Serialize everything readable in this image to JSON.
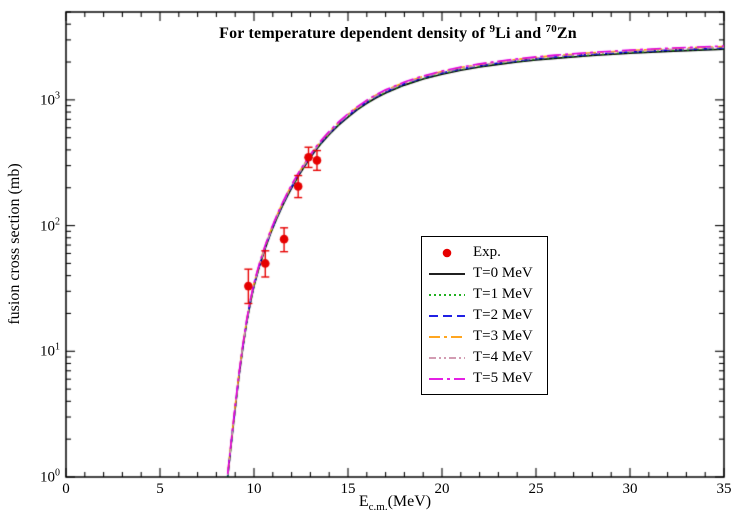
{
  "chart_data": {
    "type": "line",
    "title": "For temperature dependent density of 9Li and 70Zn",
    "title_parts": {
      "prefix": "For temperature dependent density of ",
      "iso1_mass": "9",
      "iso1_symbol": "Li",
      "conjunction": " and ",
      "iso2_mass": "70",
      "iso2_symbol": "Zn"
    },
    "xlabel": {
      "base": "E",
      "sub": "c.m.",
      "unit": "(MeV)"
    },
    "ylabel": "fusion cross section (mb)",
    "x_axis": {
      "min": 0,
      "max": 35,
      "major_ticks": [
        0,
        5,
        10,
        15,
        20,
        25,
        30,
        35
      ],
      "minor_step": 1
    },
    "y_axis": {
      "scale": "log",
      "min": 1,
      "max": 5000,
      "major_tick_exponents": [
        0,
        1,
        2,
        3
      ]
    },
    "grid": false,
    "legend": {
      "position": "center-right"
    },
    "curve_x": [
      8.6,
      8.8,
      9.0,
      9.2,
      9.4,
      9.6,
      9.8,
      10.0,
      10.3,
      10.6,
      10.9,
      11.2,
      11.5,
      11.8,
      12.1,
      12.4,
      12.7,
      13.0,
      13.3,
      13.6,
      14.0,
      14.5,
      15.0,
      15.5,
      16.0,
      16.5,
      17.0,
      18.0,
      19.0,
      20.0,
      21.0,
      22.0,
      23.0,
      24.0,
      25.0,
      26.0,
      28.0,
      30.0,
      32.0,
      35.0
    ],
    "curve_base_y": [
      1.0,
      1.9,
      3.5,
      6.3,
      10.5,
      16.5,
      24,
      33,
      48,
      66,
      88,
      113,
      142,
      175,
      212,
      253,
      298,
      347,
      400,
      455,
      530,
      630,
      730,
      835,
      940,
      1040,
      1135,
      1310,
      1465,
      1600,
      1720,
      1825,
      1915,
      2000,
      2075,
      2140,
      2255,
      2350,
      2430,
      2530
    ],
    "series": [
      {
        "name": "T=0 MeV",
        "color": "#000000",
        "dash": [],
        "scale": 1.0
      },
      {
        "name": "T=1 MeV",
        "color": "#00a400",
        "dash": [
          2,
          3
        ],
        "scale": 1.012
      },
      {
        "name": "T=2 MeV",
        "color": "#0000e0",
        "dash": [
          9,
          5
        ],
        "scale": 1.024
      },
      {
        "name": "T=3 MeV",
        "color": "#ff9a00",
        "dash": [
          11,
          4,
          3,
          4
        ],
        "scale": 1.05
      },
      {
        "name": "T=4 MeV",
        "color": "#cc8fa8",
        "dash": [
          7,
          3,
          2,
          3,
          2,
          3
        ],
        "scale": 1.036
      },
      {
        "name": "T=5 MeV",
        "color": "#e100e1",
        "dash": [
          14,
          4,
          3,
          4
        ],
        "scale": 1.06
      }
    ],
    "experiment": {
      "name": "Exp.",
      "color": "#e60000",
      "points": [
        {
          "x": 9.7,
          "y": 33,
          "err_minus": 9,
          "err_plus": 12
        },
        {
          "x": 10.6,
          "y": 50,
          "err_minus": 11,
          "err_plus": 13
        },
        {
          "x": 11.6,
          "y": 78,
          "err_minus": 16,
          "err_plus": 18
        },
        {
          "x": 12.35,
          "y": 205,
          "err_minus": 38,
          "err_plus": 45
        },
        {
          "x": 12.9,
          "y": 350,
          "err_minus": 60,
          "err_plus": 70
        },
        {
          "x": 13.35,
          "y": 330,
          "err_minus": 55,
          "err_plus": 65
        }
      ]
    }
  }
}
